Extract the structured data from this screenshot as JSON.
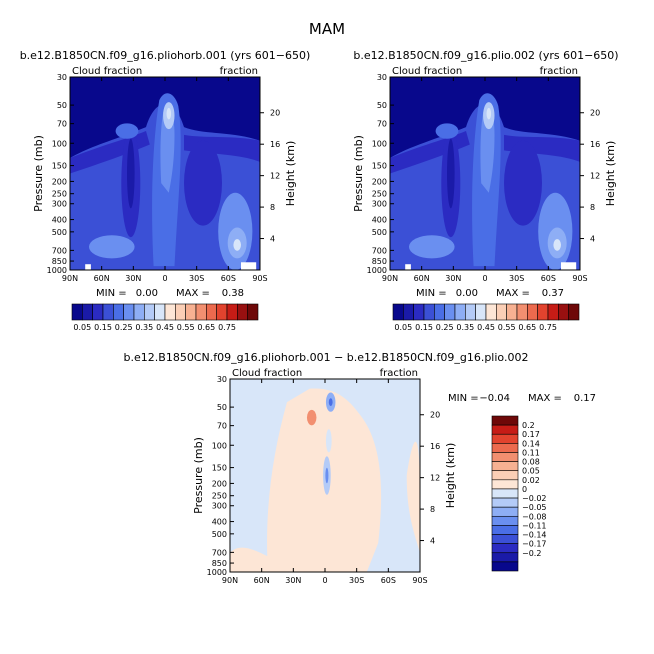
{
  "figure": {
    "title": "MAM"
  },
  "colors": {
    "diverging_palette": [
      "#08088c",
      "#1a1aa8",
      "#2b2bc2",
      "#3b50d6",
      "#4a6ee6",
      "#6a8ff0",
      "#8eaef5",
      "#b4cbf7",
      "#d8e6f9",
      "#fde6d6",
      "#fbcfb6",
      "#f7b192",
      "#f28f70",
      "#ec6a4e",
      "#e2432e",
      "#c61c16",
      "#981010",
      "#6e0808"
    ],
    "panel_colors": [
      "#2b2bc2",
      "#3b50d6",
      "#4a6ee6",
      "#6a8ff0",
      "#8eaef5",
      "#b4cbf7",
      "#d8e6f9",
      "#fde6d6"
    ],
    "diff_colors": [
      "#08088c",
      "#1a1aa8",
      "#2b2bc2",
      "#3b50d6",
      "#4a6ee6",
      "#6a8ff0",
      "#8eaef5",
      "#b4cbf7",
      "#d8e6f9",
      "#fde6d6",
      "#fbcfb6",
      "#f7b192",
      "#f28f70",
      "#ec6a4e",
      "#e2432e",
      "#c61c16",
      "#6e0808"
    ]
  },
  "chart_data": [
    {
      "type": "heatmap",
      "title": "b.e12.B1850CN.f09_g16.pliohorb.001 (yrs 601−650)",
      "left_label": "Cloud fraction",
      "right_label": "fraction",
      "xlabel": "",
      "ylabel": "Pressure (mb)",
      "y2label": "Height (km)",
      "x_ticks": [
        "90N",
        "60N",
        "30N",
        "0",
        "30S",
        "60S",
        "90S"
      ],
      "y_ticks": [
        "1000",
        "850",
        "700",
        "500",
        "400",
        "300",
        "250",
        "200",
        "150",
        "100",
        "70",
        "50",
        "30"
      ],
      "y2_ticks": [
        "4",
        "8",
        "12",
        "16",
        "20"
      ],
      "min_label": "MIN =",
      "min_value": "0.00",
      "max_label": "MAX =",
      "max_value": "0.38",
      "colorbar_labels": [
        "0.05",
        "0.15",
        "0.25",
        "0.35",
        "0.45",
        "0.55",
        "0.65",
        "0.75"
      ],
      "value_range": [
        0,
        0.38
      ]
    },
    {
      "type": "heatmap",
      "title": "b.e12.B1850CN.f09_g16.plio.002 (yrs 601−650)",
      "left_label": "Cloud fraction",
      "right_label": "fraction",
      "xlabel": "",
      "ylabel": "Pressure (mb)",
      "y2label": "Height (km)",
      "x_ticks": [
        "90N",
        "60N",
        "30N",
        "0",
        "30S",
        "60S",
        "90S"
      ],
      "y_ticks": [
        "1000",
        "850",
        "700",
        "500",
        "400",
        "300",
        "250",
        "200",
        "150",
        "100",
        "70",
        "50",
        "30"
      ],
      "y2_ticks": [
        "4",
        "8",
        "12",
        "16",
        "20"
      ],
      "min_label": "MIN =",
      "min_value": "0.00",
      "max_label": "MAX =",
      "max_value": "0.37",
      "colorbar_labels": [
        "0.05",
        "0.15",
        "0.25",
        "0.35",
        "0.45",
        "0.55",
        "0.65",
        "0.75"
      ],
      "value_range": [
        0,
        0.37
      ]
    },
    {
      "type": "heatmap",
      "title": "b.e12.B1850CN.f09_g16.pliohorb.001 − b.e12.B1850CN.f09_g16.plio.002",
      "left_label": "Cloud fraction",
      "right_label": "fraction",
      "xlabel": "",
      "ylabel": "Pressure (mb)",
      "y2label": "Height (km)",
      "x_ticks": [
        "90N",
        "60N",
        "30N",
        "0",
        "30S",
        "60S",
        "90S"
      ],
      "y_ticks": [
        "1000",
        "850",
        "700",
        "500",
        "400",
        "300",
        "250",
        "200",
        "150",
        "100",
        "70",
        "50",
        "30"
      ],
      "y2_ticks": [
        "4",
        "8",
        "12",
        "16",
        "20"
      ],
      "min_label": "MIN =",
      "min_value": "−0.04",
      "max_label": "MAX =",
      "max_value": "0.17",
      "colorbar_labels": [
        "0.2",
        "0.17",
        "0.14",
        "0.11",
        "0.08",
        "0.05",
        "0.02",
        "0",
        "−0.02",
        "−0.05",
        "−0.08",
        "−0.11",
        "−0.14",
        "−0.17",
        "−0.2"
      ],
      "value_range": [
        -0.04,
        0.17
      ]
    }
  ]
}
